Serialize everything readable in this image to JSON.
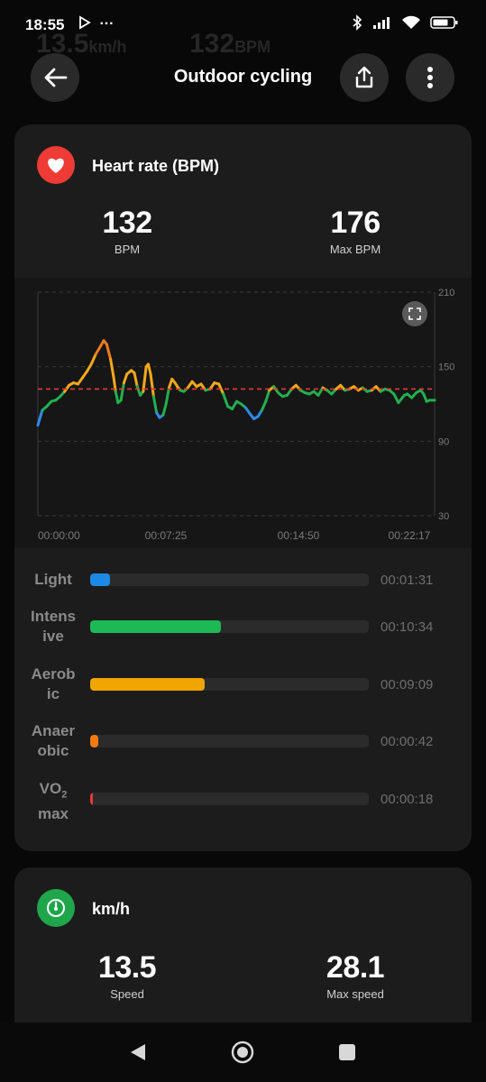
{
  "status_bar": {
    "time": "18:55",
    "more": "···"
  },
  "background_ghost": {
    "speed": "13.5",
    "speed_unit": "km/h",
    "bpm": "132",
    "bpm_unit": "BPM"
  },
  "header": {
    "title": "Outdoor cycling"
  },
  "heart_card": {
    "title": "Heart rate (BPM)",
    "stats": [
      {
        "value": "132",
        "label": "BPM"
      },
      {
        "value": "176",
        "label": "Max BPM"
      }
    ],
    "chart_data": {
      "type": "line",
      "y_ticks": [
        "210",
        "150",
        "90",
        "30"
      ],
      "ylim": [
        30,
        210
      ],
      "x_ticks": [
        "00:00:00",
        "00:07:25",
        "00:14:50",
        "00:22:17"
      ],
      "average_line": 132,
      "x_seconds_max": 1337,
      "points": [
        [
          0,
          103
        ],
        [
          15,
          115
        ],
        [
          30,
          118
        ],
        [
          45,
          122
        ],
        [
          60,
          123
        ],
        [
          75,
          126
        ],
        [
          90,
          130
        ],
        [
          105,
          135
        ],
        [
          120,
          137
        ],
        [
          135,
          136
        ],
        [
          150,
          141
        ],
        [
          165,
          146
        ],
        [
          180,
          152
        ],
        [
          195,
          160
        ],
        [
          210,
          166
        ],
        [
          222,
          171
        ],
        [
          232,
          168
        ],
        [
          245,
          156
        ],
        [
          255,
          142
        ],
        [
          262,
          130
        ],
        [
          270,
          121
        ],
        [
          280,
          123
        ],
        [
          290,
          137
        ],
        [
          300,
          144
        ],
        [
          315,
          147
        ],
        [
          325,
          145
        ],
        [
          335,
          134
        ],
        [
          345,
          127
        ],
        [
          355,
          130
        ],
        [
          365,
          150
        ],
        [
          372,
          152
        ],
        [
          380,
          144
        ],
        [
          390,
          126
        ],
        [
          400,
          113
        ],
        [
          410,
          109
        ],
        [
          422,
          111
        ],
        [
          432,
          120
        ],
        [
          442,
          133
        ],
        [
          452,
          140
        ],
        [
          462,
          137
        ],
        [
          470,
          134
        ],
        [
          480,
          131
        ],
        [
          492,
          130
        ],
        [
          505,
          133
        ],
        [
          520,
          138
        ],
        [
          535,
          134
        ],
        [
          550,
          136
        ],
        [
          565,
          131
        ],
        [
          580,
          132
        ],
        [
          595,
          137
        ],
        [
          610,
          136
        ],
        [
          625,
          128
        ],
        [
          640,
          118
        ],
        [
          655,
          116
        ],
        [
          670,
          122
        ],
        [
          685,
          120
        ],
        [
          700,
          117
        ],
        [
          715,
          112
        ],
        [
          728,
          108
        ],
        [
          742,
          110
        ],
        [
          755,
          115
        ],
        [
          768,
          122
        ],
        [
          780,
          131
        ],
        [
          795,
          134
        ],
        [
          810,
          129
        ],
        [
          825,
          126
        ],
        [
          840,
          127
        ],
        [
          855,
          132
        ],
        [
          870,
          135
        ],
        [
          885,
          131
        ],
        [
          900,
          129
        ],
        [
          915,
          128
        ],
        [
          930,
          130
        ],
        [
          945,
          127
        ],
        [
          960,
          133
        ],
        [
          975,
          131
        ],
        [
          990,
          128
        ],
        [
          1005,
          132
        ],
        [
          1020,
          135
        ],
        [
          1035,
          131
        ],
        [
          1050,
          132
        ],
        [
          1065,
          134
        ],
        [
          1080,
          131
        ],
        [
          1095,
          133
        ],
        [
          1110,
          130
        ],
        [
          1125,
          131
        ],
        [
          1140,
          134
        ],
        [
          1155,
          130
        ],
        [
          1170,
          132
        ],
        [
          1185,
          131
        ],
        [
          1200,
          128
        ],
        [
          1215,
          121
        ],
        [
          1225,
          124
        ],
        [
          1235,
          127
        ],
        [
          1245,
          128
        ],
        [
          1260,
          125
        ],
        [
          1275,
          129
        ],
        [
          1290,
          131
        ],
        [
          1300,
          128
        ],
        [
          1310,
          122
        ],
        [
          1320,
          123
        ],
        [
          1337,
          123
        ]
      ]
    },
    "zones": [
      {
        "label": "Light",
        "time": "00:01:31",
        "fraction": 0.07,
        "color": "#1e88e5"
      },
      {
        "label": "Intens ive",
        "time": "00:10:34",
        "fraction": 0.47,
        "color": "#1db955"
      },
      {
        "label": "Aerob ic",
        "time": "00:09:09",
        "fraction": 0.41,
        "color": "#f0a500"
      },
      {
        "label": "Anaer obic",
        "time": "00:00:42",
        "fraction": 0.03,
        "color": "#f27a10"
      },
      {
        "label_main": "VO",
        "label_sub": "2",
        "label_tail": "max",
        "time": "00:00:18",
        "fraction": 0.01,
        "color": "#e53935"
      }
    ]
  },
  "speed_card": {
    "title": "km/h",
    "stats": [
      {
        "value": "13.5",
        "label": "Speed"
      },
      {
        "value": "28.1",
        "label": "Max speed"
      }
    ]
  },
  "colors": {
    "heart_icon_bg": "#ee3b35",
    "speed_icon_bg": "#1fa64a",
    "avg_line": "#e53935"
  }
}
